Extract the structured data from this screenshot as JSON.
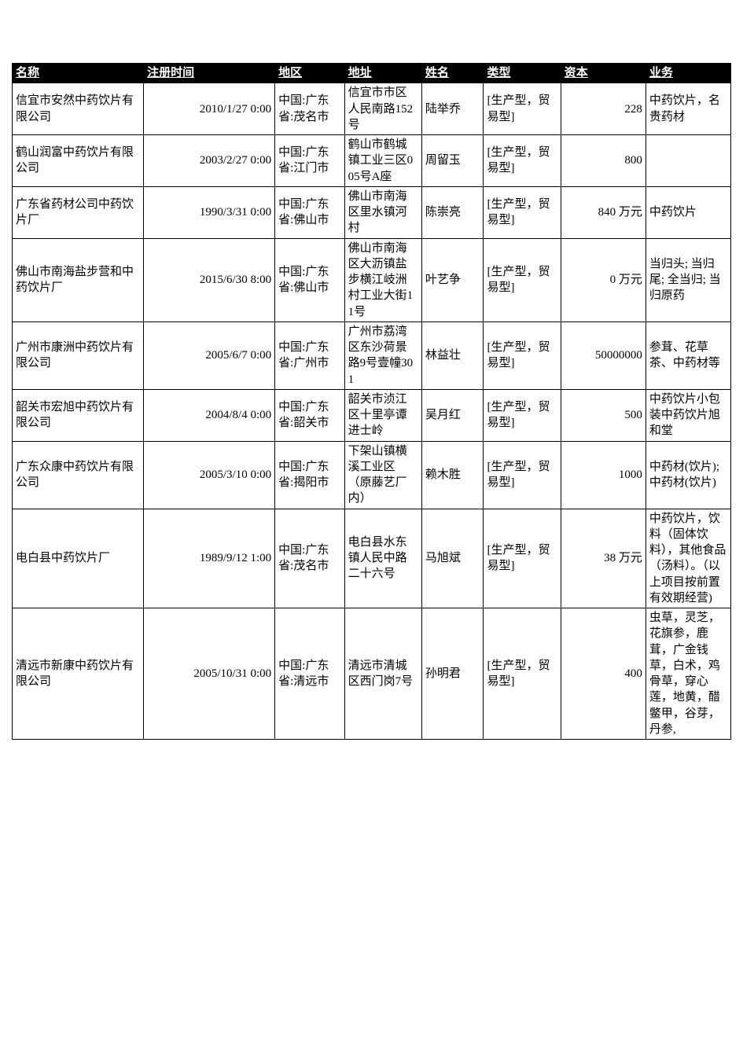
{
  "table": {
    "type": "table",
    "background_color": "#ffffff",
    "border_color": "#000000",
    "header_bg": "#000000",
    "header_color": "#ffffff",
    "font_family": "SimSun",
    "font_size": 15,
    "columns": [
      {
        "key": "name",
        "label": "名称",
        "width": "17%",
        "align": "left"
      },
      {
        "key": "regtime",
        "label": "注册时间",
        "width": "17%",
        "align": "right"
      },
      {
        "key": "region",
        "label": "地区",
        "width": "9%",
        "align": "left"
      },
      {
        "key": "address",
        "label": "地址",
        "width": "10%",
        "align": "left"
      },
      {
        "key": "person",
        "label": "姓名",
        "width": "8%",
        "align": "left"
      },
      {
        "key": "type",
        "label": "类型",
        "width": "10%",
        "align": "left"
      },
      {
        "key": "capital",
        "label": "资本",
        "width": "11%",
        "align": "right"
      },
      {
        "key": "business",
        "label": "业务",
        "width": "11%",
        "align": "left"
      }
    ],
    "rows": [
      {
        "name": "信宜市安然中药饮片有限公司",
        "regtime": "2010/1/27 0:00",
        "region": "中国:广东省:茂名市",
        "address": "信宜市市区人民南路152号",
        "person": "陆举乔",
        "type": "[生产型，贸易型]",
        "capital": "228",
        "business": "中药饮片，名贵药材"
      },
      {
        "name": "鹤山润富中药饮片有限公司",
        "regtime": "2003/2/27 0:00",
        "region": "中国:广东省:江门市",
        "address": "鹤山市鹤城镇工业三区005号A座",
        "person": "周留玉",
        "type": "[生产型，贸易型]",
        "capital": "800",
        "business": ""
      },
      {
        "name": "广东省药材公司中药饮片厂",
        "regtime": "1990/3/31 0:00",
        "region": "中国:广东省:佛山市",
        "address": "佛山市南海区里水镇河村",
        "person": "陈崇亮",
        "type": "[生产型，贸易型]",
        "capital": "840 万元",
        "business": "中药饮片"
      },
      {
        "name": "佛山市南海盐步营和中药饮片厂",
        "regtime": "2015/6/30 8:00",
        "region": "中国:广东省:佛山市",
        "address": "佛山市南海区大沥镇盐步横江岐洲村工业大街11号",
        "person": "叶艺争",
        "type": "[生产型，贸易型]",
        "capital": "0 万元",
        "business": "当归头; 当归尾; 全当归; 当归原药"
      },
      {
        "name": "广州市康洲中药饮片有限公司",
        "regtime": "2005/6/7 0:00",
        "region": "中国:广东省:广州市",
        "address": "广州市荔湾区东沙荷景路9号壹幢301",
        "person": "林益壮",
        "type": "[生产型，贸易型]",
        "capital": "50000000",
        "business": "参茸、花草茶、中药材等"
      },
      {
        "name": "韶关市宏旭中药饮片有限公司",
        "regtime": "2004/8/4 0:00",
        "region": "中国:广东省:韶关市",
        "address": "韶关市浈江区十里亭谭进士岭",
        "person": "吴月红",
        "type": "[生产型，贸易型]",
        "capital": "500",
        "business": "中药饮片小包装中药饮片旭和堂"
      },
      {
        "name": "广东众康中药饮片有限公司",
        "regtime": "2005/3/10 0:00",
        "region": "中国:广东省:揭阳市",
        "address": "下架山镇横溪工业区（原藤艺厂内）",
        "person": "赖木胜",
        "type": "[生产型，贸易型]",
        "capital": "1000",
        "business": "中药材(饮片); 中药材(饮片)"
      },
      {
        "name": "电白县中药饮片厂",
        "regtime": "1989/9/12 1:00",
        "region": "中国:广东省:茂名市",
        "address": "电白县水东镇人民中路二十六号",
        "person": "马旭斌",
        "type": "[生产型，贸易型]",
        "capital": "38 万元",
        "business": "中药饮片，饮料（固体饮料），其他食品（汤料）。（以上项目按前置有效期经营)"
      },
      {
        "name": "清远市新康中药饮片有限公司",
        "regtime": "2005/10/31 0:00",
        "region": "中国:广东省:清远市",
        "address": "清远市清城区西门岗7号",
        "person": "孙明君",
        "type": "[生产型，贸易型]",
        "capital": "400",
        "business": "虫草，灵芝，花旗参，鹿茸，广金钱草，白术，鸡骨草，穿心莲，地黄，醋鳖甲，谷芽，丹参,"
      }
    ]
  }
}
